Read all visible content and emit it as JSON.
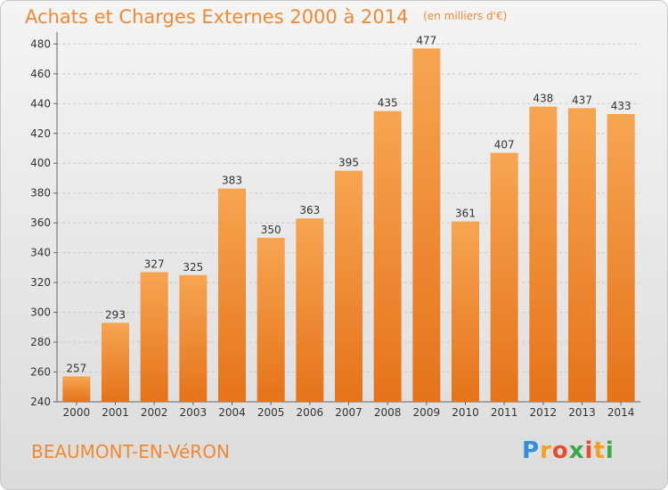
{
  "title": "Achats et Charges Externes 2000 à 2014",
  "unit_label": "(en milliers d'€)",
  "commune": "BEAUMONT-EN-VéRON",
  "logo": {
    "letters": [
      "P",
      "r",
      "o",
      "x",
      "i",
      "t",
      "i"
    ],
    "colors": [
      "#2f8fd8",
      "#f5a020",
      "#e84c2c",
      "#3aa845",
      "#e84c2c",
      "#f5a020",
      "#3aa845"
    ]
  },
  "colors": {
    "bar": "#f0882e",
    "bar_light": "#f7a55a",
    "bar_dark": "#e07418",
    "title": "#f08a32"
  },
  "chart_data": {
    "type": "bar",
    "title": "Achats et Charges Externes 2000 à 2014",
    "subtitle": "(en milliers d'€)",
    "categories": [
      "2000",
      "2001",
      "2002",
      "2003",
      "2004",
      "2005",
      "2006",
      "2007",
      "2008",
      "2009",
      "2010",
      "2011",
      "2012",
      "2013",
      "2014"
    ],
    "values": [
      257,
      293,
      327,
      325,
      383,
      350,
      363,
      395,
      435,
      477,
      361,
      407,
      438,
      437,
      433
    ],
    "ylim": [
      240,
      485
    ],
    "yticks": [
      240,
      260,
      280,
      300,
      320,
      340,
      360,
      380,
      400,
      420,
      440,
      460,
      480
    ],
    "grid": true,
    "data_labels": true
  }
}
